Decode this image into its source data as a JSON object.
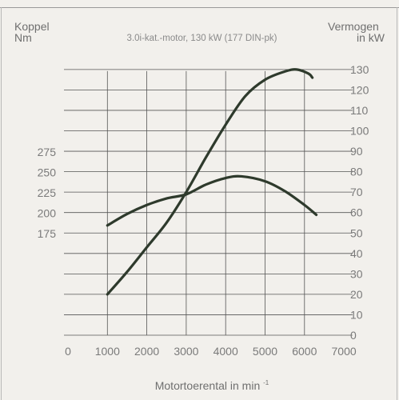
{
  "chart_data": {
    "type": "line",
    "title": "3.0i-kat.-motor, 130 kW (177 DIN-pk)",
    "xlabel": "Motortoerental in min",
    "xlabel_exponent": "-1",
    "left_axis": {
      "label_line1": "Koppel",
      "label_line2": "Nm",
      "ticks": [
        175,
        200,
        225,
        250,
        275
      ]
    },
    "right_axis": {
      "label_line1": "Vermogen",
      "label_line2": "in kW",
      "ticks": [
        0,
        10,
        20,
        30,
        40,
        50,
        60,
        70,
        80,
        90,
        100,
        110,
        120,
        130
      ]
    },
    "x_ticks": [
      0,
      1000,
      2000,
      3000,
      4000,
      5000,
      6000,
      7000
    ],
    "grid": true,
    "series": [
      {
        "axis": "left",
        "points": [
          [
            1000,
            185
          ],
          [
            1500,
            199
          ],
          [
            2000,
            210
          ],
          [
            2500,
            218
          ],
          [
            3000,
            223
          ],
          [
            3500,
            235
          ],
          [
            4000,
            243
          ],
          [
            4400,
            245
          ],
          [
            5000,
            239
          ],
          [
            5500,
            227
          ],
          [
            6000,
            210
          ],
          [
            6300,
            198
          ]
        ]
      },
      {
        "axis": "right",
        "points": [
          [
            1000,
            20
          ],
          [
            1500,
            31
          ],
          [
            2000,
            43
          ],
          [
            2500,
            55
          ],
          [
            3000,
            70
          ],
          [
            3500,
            87
          ],
          [
            4000,
            103
          ],
          [
            4500,
            117
          ],
          [
            5000,
            125
          ],
          [
            5500,
            129
          ],
          [
            5800,
            130
          ],
          [
            6100,
            128
          ],
          [
            6200,
            126
          ]
        ]
      }
    ],
    "line_color": "#2e3a2c",
    "grid_color": "#555555"
  }
}
